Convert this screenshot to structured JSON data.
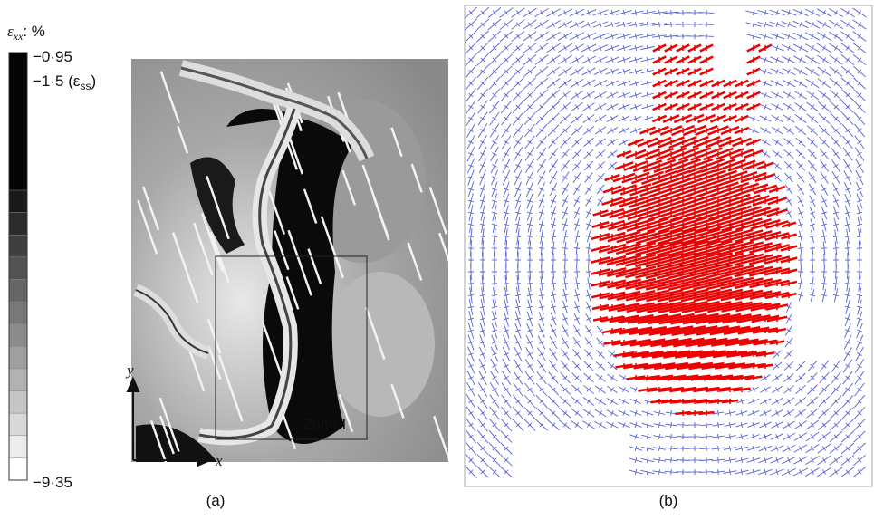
{
  "panel_a": {
    "colorbar": {
      "title_symbol": "ε",
      "title_subscript": "xx",
      "title_unit": ": %",
      "max_label": "−0·95",
      "ss_label_prefix": "−1·5 (ε",
      "ss_label_subscript": "ss",
      "ss_label_suffix": ")",
      "min_label": "−9·35"
    },
    "axis_y": "y",
    "axis_x": "x",
    "zone_label": "Zone I",
    "caption": "(a)"
  },
  "panel_b": {
    "caption": "(b)"
  }
}
